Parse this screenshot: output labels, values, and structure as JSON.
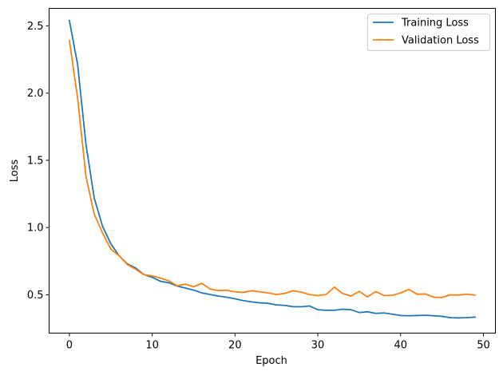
{
  "chart_data": {
    "type": "line",
    "title": "",
    "xlabel": "Epoch",
    "ylabel": "Loss",
    "xlim": [
      -2.45,
      51.45
    ],
    "ylim": [
      0.215,
      2.63
    ],
    "xticks": [
      0,
      10,
      20,
      30,
      40,
      50
    ],
    "yticks": [
      0.5,
      1.0,
      1.5,
      2.0,
      2.5
    ],
    "xtick_labels": [
      "0",
      "10",
      "20",
      "30",
      "40",
      "50"
    ],
    "ytick_labels": [
      "0.5",
      "1.0",
      "1.5",
      "2.0",
      "2.5"
    ],
    "grid": false,
    "legend_position": "upper right",
    "x": [
      0,
      1,
      2,
      3,
      4,
      5,
      6,
      7,
      8,
      9,
      10,
      11,
      12,
      13,
      14,
      15,
      16,
      17,
      18,
      19,
      20,
      21,
      22,
      23,
      24,
      25,
      26,
      27,
      28,
      29,
      30,
      31,
      32,
      33,
      34,
      35,
      36,
      37,
      38,
      39,
      40,
      41,
      42,
      43,
      44,
      45,
      46,
      47,
      48,
      49
    ],
    "series": [
      {
        "name": "Training Loss",
        "color": "#1f77b4",
        "values": [
          2.54,
          2.21,
          1.62,
          1.22,
          1.01,
          0.88,
          0.79,
          0.73,
          0.7,
          0.65,
          0.63,
          0.6,
          0.59,
          0.565,
          0.55,
          0.535,
          0.514,
          0.502,
          0.49,
          0.482,
          0.47,
          0.457,
          0.447,
          0.44,
          0.437,
          0.425,
          0.421,
          0.412,
          0.411,
          0.417,
          0.389,
          0.385,
          0.385,
          0.393,
          0.389,
          0.368,
          0.374,
          0.362,
          0.365,
          0.356,
          0.346,
          0.344,
          0.346,
          0.348,
          0.344,
          0.34,
          0.33,
          0.328,
          0.33,
          0.334
        ]
      },
      {
        "name": "Validation Loss",
        "color": "#ff7f0e",
        "values": [
          2.39,
          1.96,
          1.38,
          1.1,
          0.96,
          0.84,
          0.79,
          0.725,
          0.69,
          0.65,
          0.64,
          0.624,
          0.604,
          0.567,
          0.579,
          0.56,
          0.585,
          0.543,
          0.531,
          0.534,
          0.522,
          0.518,
          0.53,
          0.522,
          0.514,
          0.502,
          0.51,
          0.53,
          0.52,
          0.502,
          0.494,
          0.502,
          0.557,
          0.51,
          0.49,
          0.526,
          0.484,
          0.524,
          0.494,
          0.496,
          0.514,
          0.54,
          0.504,
          0.506,
          0.482,
          0.48,
          0.5,
          0.498,
          0.504,
          0.498
        ]
      }
    ]
  },
  "legend": {
    "items": [
      {
        "label": "Training Loss",
        "color": "#1f77b4"
      },
      {
        "label": "Validation Loss",
        "color": "#ff7f0e"
      }
    ]
  }
}
